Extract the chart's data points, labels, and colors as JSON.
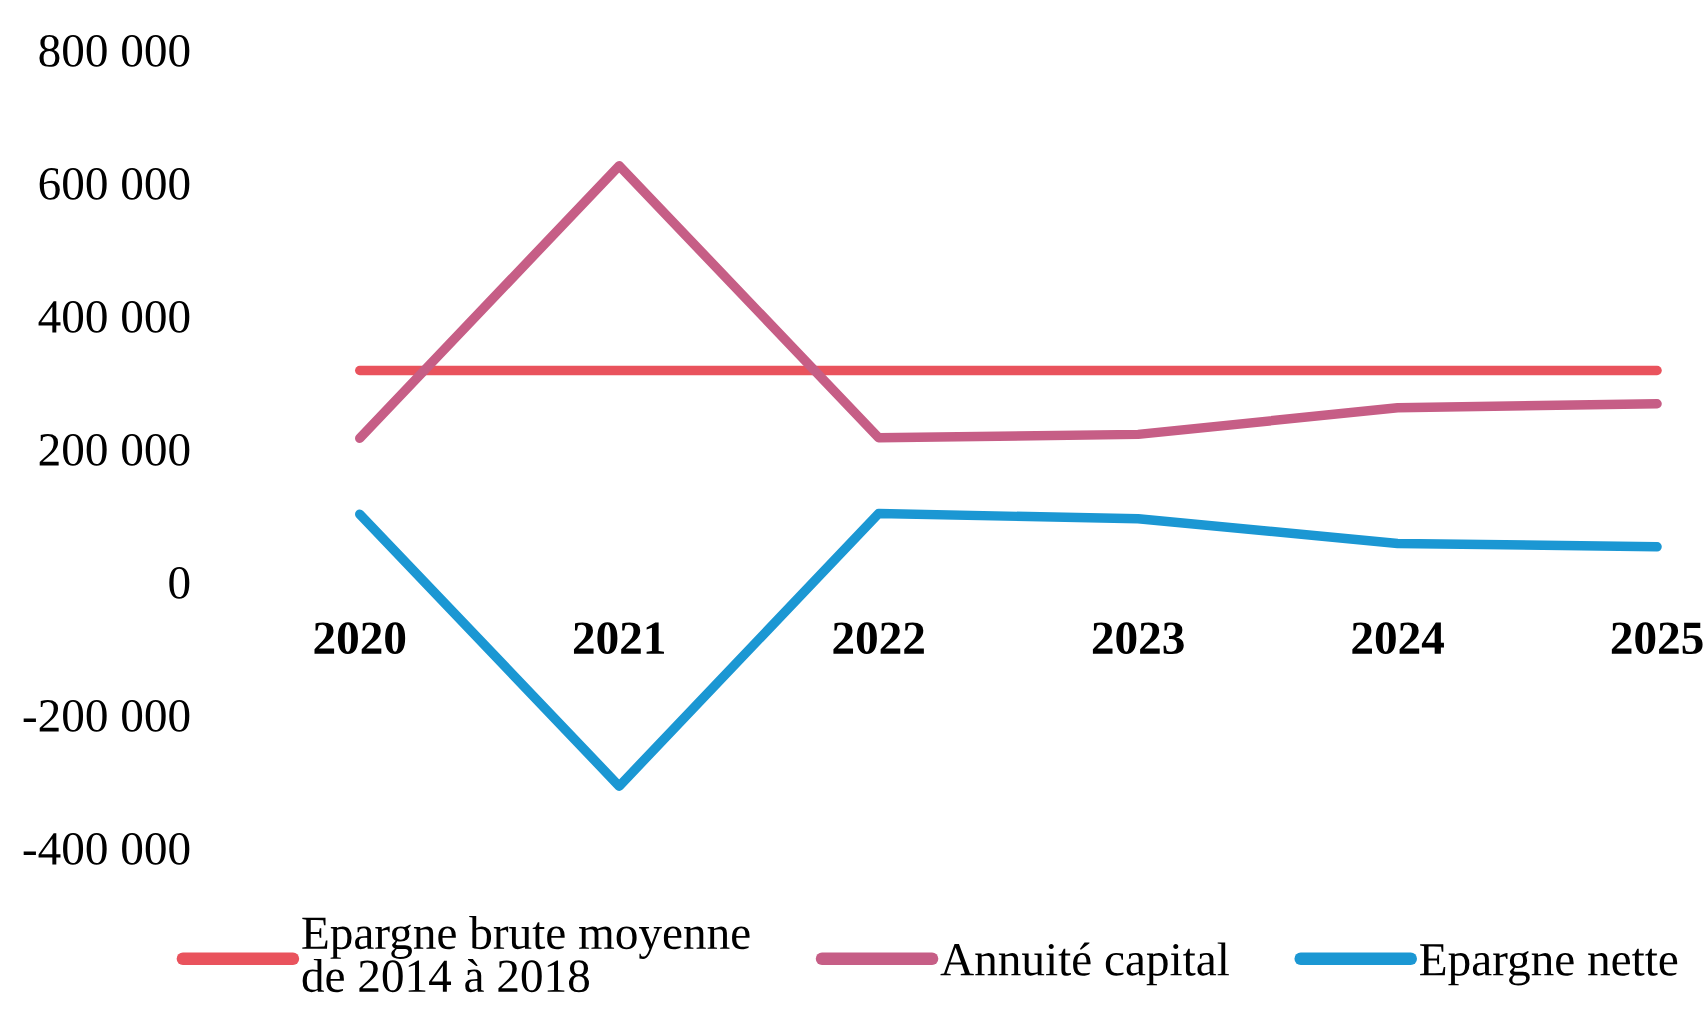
{
  "chart_data": {
    "type": "line",
    "categories": [
      "2020",
      "2021",
      "2022",
      "2023",
      "2024",
      "2025"
    ],
    "series": [
      {
        "name": "Epargne brute moyenne\nde 2014 à 2018",
        "color": "#e9535d",
        "values": [
          318000,
          318000,
          318000,
          318000,
          318000,
          318000
        ]
      },
      {
        "name": "Annuité capital",
        "color": "#c65e86",
        "values": [
          216000,
          626000,
          217000,
          222000,
          262000,
          268000
        ]
      },
      {
        "name": "Epargne nette",
        "color": "#1b97d3",
        "values": [
          102000,
          -307000,
          103000,
          95000,
          58000,
          53000
        ]
      }
    ],
    "ylim": [
      -400000,
      800000
    ],
    "yticks": [
      {
        "value": -400000,
        "label": "-400 000"
      },
      {
        "value": -200000,
        "label": "-200 000"
      },
      0,
      {
        "value": 200000,
        "label": "200 000"
      },
      {
        "value": 400000,
        "label": "400 000"
      },
      {
        "value": 600000,
        "label": "600 000"
      },
      {
        "value": 800000,
        "label": "800 000"
      }
    ],
    "legend": "bottom"
  }
}
